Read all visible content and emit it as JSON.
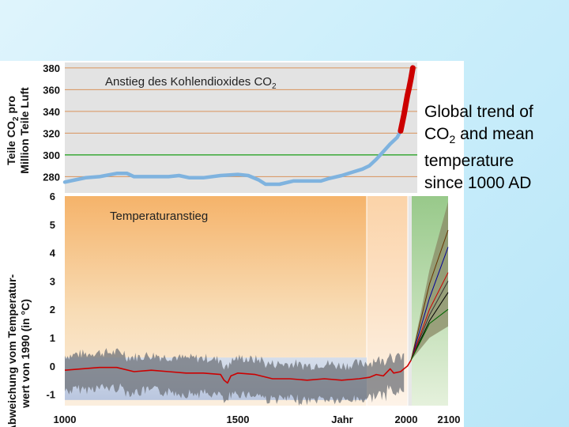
{
  "caption": {
    "line1": "Global trend of",
    "co2_prefix": "CO",
    "co2_sub": "2",
    "line2_rest": " and mean",
    "line3": "temperature",
    "line4": "since 1000 AD"
  },
  "chart_data": [
    {
      "type": "line",
      "title_prefix": "Anstieg des Kohlendioxides CO",
      "title_sub": "2",
      "ylabel_line1_prefix": "Teile CO",
      "ylabel_line1_sub": "2",
      "ylabel_line1_suffix": " pro",
      "ylabel_line2": "Million Teile Luft",
      "yticks": [
        280,
        300,
        320,
        340,
        360,
        380
      ],
      "ylim": [
        265,
        385
      ],
      "xlim": [
        1000,
        2100
      ],
      "series": [
        {
          "color": "#7fb3df",
          "points": [
            [
              1000,
              275
            ],
            [
              1030,
              277
            ],
            [
              1060,
              279
            ],
            [
              1100,
              280
            ],
            [
              1150,
              283
            ],
            [
              1180,
              283
            ],
            [
              1200,
              280
            ],
            [
              1250,
              280
            ],
            [
              1300,
              280
            ],
            [
              1330,
              281
            ],
            [
              1360,
              279
            ],
            [
              1400,
              279
            ],
            [
              1450,
              281
            ],
            [
              1500,
              282
            ],
            [
              1530,
              281
            ],
            [
              1560,
              277
            ],
            [
              1580,
              273
            ],
            [
              1620,
              273
            ],
            [
              1660,
              276
            ],
            [
              1700,
              276
            ],
            [
              1740,
              276
            ],
            [
              1760,
              278
            ],
            [
              1800,
              281
            ],
            [
              1830,
              284
            ],
            [
              1860,
              287
            ],
            [
              1880,
              290
            ],
            [
              1900,
              296
            ],
            [
              1920,
              303
            ],
            [
              1940,
              310
            ],
            [
              1960,
              316
            ],
            [
              1970,
              322
            ]
          ]
        },
        {
          "color": "#cc0000",
          "points": [
            [
              1970,
              322
            ],
            [
              1980,
              337
            ],
            [
              1985,
              346
            ],
            [
              1990,
              355
            ],
            [
              1995,
              362
            ],
            [
              2000,
              370
            ],
            [
              2005,
              380
            ]
          ]
        }
      ],
      "reference_lines": [
        {
          "y": 300,
          "color": "#3aaa3a"
        }
      ]
    },
    {
      "type": "line",
      "title": "Temperaturanstieg",
      "ylabel_line1": "Abweichung vom Temperatur-",
      "ylabel_line2": "wert von 1990 (in °C)",
      "xlabel": "Jahr",
      "xticks": [
        1000,
        1500,
        2000,
        2100
      ],
      "yticks": [
        -1,
        0,
        1,
        2,
        3,
        4,
        5,
        6
      ],
      "ylim": [
        -1.4,
        6
      ],
      "xlim": [
        1000,
        2100
      ],
      "series": [
        {
          "color": "#cc0000",
          "points": [
            [
              1000,
              -0.15
            ],
            [
              1050,
              -0.1
            ],
            [
              1100,
              -0.05
            ],
            [
              1150,
              -0.05
            ],
            [
              1200,
              -0.2
            ],
            [
              1250,
              -0.15
            ],
            [
              1300,
              -0.2
            ],
            [
              1350,
              -0.25
            ],
            [
              1400,
              -0.25
            ],
            [
              1450,
              -0.3
            ],
            [
              1460,
              -0.5
            ],
            [
              1470,
              -0.6
            ],
            [
              1480,
              -0.35
            ],
            [
              1500,
              -0.25
            ],
            [
              1550,
              -0.3
            ],
            [
              1600,
              -0.45
            ],
            [
              1650,
              -0.45
            ],
            [
              1700,
              -0.5
            ],
            [
              1750,
              -0.45
            ],
            [
              1800,
              -0.5
            ],
            [
              1850,
              -0.45
            ],
            [
              1880,
              -0.4
            ],
            [
              1900,
              -0.3
            ],
            [
              1920,
              -0.35
            ],
            [
              1940,
              -0.1
            ],
            [
              1950,
              -0.25
            ],
            [
              1970,
              -0.2
            ],
            [
              1980,
              -0.1
            ],
            [
              1990,
              0.0
            ],
            [
              2000,
              0.2
            ]
          ]
        }
      ],
      "projections": [
        {
          "color": "#000000",
          "points": [
            [
              2000,
              0.2
            ],
            [
              2050,
              1.6
            ],
            [
              2100,
              2.6
            ]
          ]
        },
        {
          "color": "#333333",
          "points": [
            [
              2000,
              0.2
            ],
            [
              2050,
              1.8
            ],
            [
              2100,
              3.0
            ]
          ]
        },
        {
          "color": "#cc0000",
          "points": [
            [
              2000,
              0.2
            ],
            [
              2050,
              2.0
            ],
            [
              2100,
              3.3
            ]
          ]
        },
        {
          "color": "#000099",
          "points": [
            [
              2000,
              0.2
            ],
            [
              2050,
              2.4
            ],
            [
              2100,
              4.2
            ]
          ]
        },
        {
          "color": "#006600",
          "points": [
            [
              2000,
              0.2
            ],
            [
              2050,
              1.5
            ],
            [
              2100,
              2.0
            ]
          ]
        },
        {
          "color": "#663300",
          "points": [
            [
              2000,
              0.2
            ],
            [
              2050,
              2.9
            ],
            [
              2100,
              4.8
            ]
          ]
        }
      ],
      "uncertainty_band": {
        "x": [
          2000,
          2050,
          2100
        ],
        "low": [
          0.2,
          1.0,
          1.4
        ],
        "high": [
          0.2,
          3.4,
          5.8
        ]
      },
      "proxy_range": {
        "low": -1.2,
        "high": 0.3
      }
    }
  ]
}
